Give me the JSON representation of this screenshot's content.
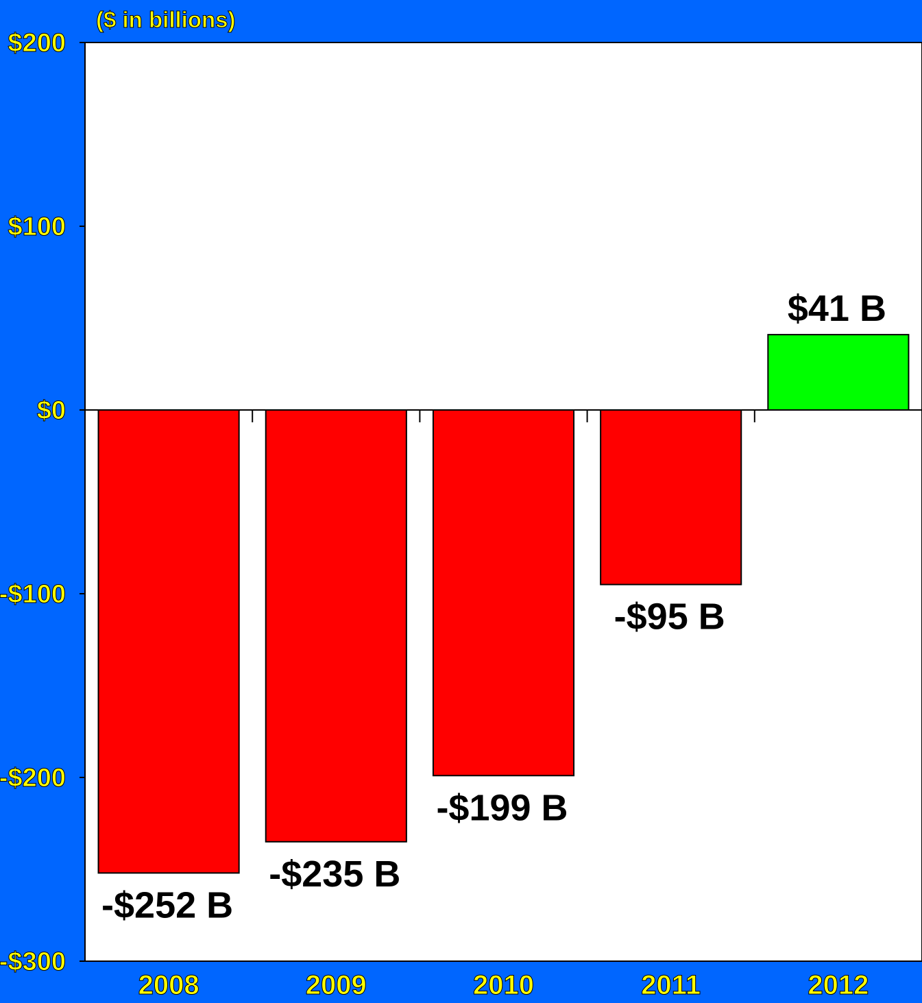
{
  "chart_data": {
    "type": "bar",
    "title": "($ in billions)",
    "xlabel": "",
    "ylabel": "",
    "categories": [
      "2008",
      "2009",
      "2010",
      "2011",
      "2012"
    ],
    "values": [
      -252,
      -235,
      -199,
      -95,
      41
    ],
    "value_labels": [
      "-$252 B",
      "-$235 B",
      "-$199 B",
      "-$95 B",
      "$41 B"
    ],
    "ylim": [
      -300,
      200
    ],
    "y_ticks": [
      200,
      100,
      0,
      -100,
      -200,
      -300
    ],
    "y_tick_labels": [
      "$200",
      "$100",
      "$0",
      "-$100",
      "-$200",
      "-$300"
    ],
    "grid": false,
    "legend": "none",
    "colors": {
      "background": "#0066FF",
      "plot_area": "#FFFFFF",
      "negative_bar": "#FF0000",
      "positive_bar": "#00FF00",
      "axis_text": "#FFFF00",
      "value_label": "#000000",
      "outline": "#000000"
    }
  }
}
